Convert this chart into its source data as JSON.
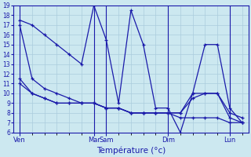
{
  "background_color": "#cce8f0",
  "grid_color": "#aaccdd",
  "line_color": "#1a1aaa",
  "xlabel": "Température (°c)",
  "ylim": [
    6,
    19
  ],
  "yticks": [
    6,
    7,
    8,
    9,
    10,
    11,
    12,
    13,
    14,
    15,
    16,
    17,
    18,
    19
  ],
  "day_positions": [
    0,
    6,
    7,
    12,
    17
  ],
  "day_labels": [
    "Ven",
    "Mar",
    "Sam",
    "Dim",
    "Lun"
  ],
  "series": [
    {
      "x": [
        0,
        1,
        2,
        3,
        4,
        5,
        6,
        7,
        8,
        9,
        10,
        11,
        12,
        13,
        14,
        15,
        16,
        17,
        18
      ],
      "y": [
        17.5,
        17,
        16,
        15,
        14,
        13,
        19,
        15.5,
        9.0,
        18.5,
        15,
        8.5,
        8.5,
        6.0,
        10,
        15,
        15,
        8.5,
        7.0
      ]
    },
    {
      "x": [
        0,
        1,
        2,
        3,
        4,
        5,
        6,
        7,
        8,
        9,
        10,
        11,
        12,
        13,
        14,
        15,
        16,
        17,
        18
      ],
      "y": [
        17,
        11.5,
        10.5,
        10,
        9.5,
        9.0,
        9.0,
        8.5,
        8.5,
        8.0,
        8.0,
        8.0,
        8.0,
        7.5,
        7.5,
        7.5,
        7.5,
        7.0,
        7.0
      ]
    },
    {
      "x": [
        0,
        1,
        2,
        3,
        4,
        5,
        6,
        7,
        8,
        9,
        10,
        11,
        12,
        13,
        14,
        15,
        16,
        17,
        18
      ],
      "y": [
        11.5,
        10,
        9.5,
        9.0,
        9.0,
        9.0,
        9.0,
        8.5,
        8.5,
        8.0,
        8.0,
        8.0,
        8.0,
        8.0,
        9.5,
        10,
        10,
        8.0,
        7.5
      ]
    },
    {
      "x": [
        0,
        1,
        2,
        3,
        4,
        5,
        6,
        7,
        8,
        9,
        10,
        11,
        12,
        13,
        14,
        15,
        16,
        17,
        18
      ],
      "y": [
        11,
        10,
        9.5,
        9.0,
        9.0,
        9.0,
        9.0,
        8.5,
        8.5,
        8.0,
        8.0,
        8.0,
        8.0,
        8.0,
        10,
        10,
        10,
        7.5,
        7.0
      ]
    }
  ]
}
